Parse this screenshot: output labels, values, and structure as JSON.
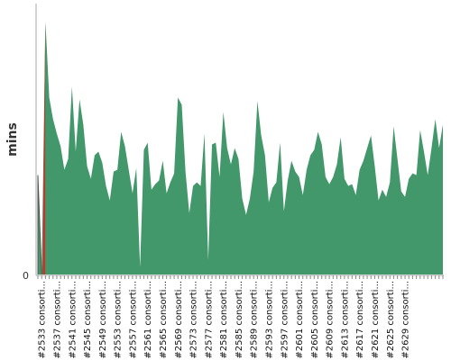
{
  "chart_data": {
    "type": "area",
    "ylabel": "mins",
    "ylim": [
      0,
      150
    ],
    "yticks": [
      0
    ],
    "grid": false,
    "colors": {
      "main": "#42986a",
      "highlight": "#c0392b",
      "axis": "#aaaaaa",
      "edge": "#555555"
    },
    "x_tick_labels": [
      "#2533 consorti...",
      "#2537 consorti...",
      "#2541 consorti...",
      "#2545 consorti...",
      "#2549 consorti...",
      "#2553 consorti...",
      "#2557 consorti...",
      "#2561 consorti...",
      "#2565 consorti...",
      "#2569 consorti...",
      "#2573 consorti...",
      "#2577 consorti...",
      "#2581 consorti...",
      "#2585 consorti...",
      "#2589 consorti...",
      "#2593 consorti...",
      "#2597 consorti...",
      "#2601 consorti...",
      "#2605 consorti...",
      "#2609 consorti...",
      "#2613 consorti...",
      "#2617 consorti...",
      "#2621 consorti...",
      "#2625 consorti...",
      "#2629 consorti..."
    ],
    "series": [
      {
        "x_start": 2532,
        "x_step": 1,
        "values": [
          55,
          0,
          140,
          98,
          86,
          78,
          71,
          58,
          64,
          104,
          68,
          97,
          83,
          60,
          53,
          66,
          68,
          62,
          49,
          41,
          57,
          58,
          79,
          71,
          58,
          45,
          59,
          4,
          69,
          73,
          47,
          50,
          52,
          63,
          45,
          51,
          56,
          98,
          94,
          57,
          34,
          49,
          51,
          49,
          78,
          8,
          72,
          73,
          54,
          90,
          70,
          61,
          70,
          64,
          42,
          33,
          42,
          57,
          96,
          77,
          66,
          40,
          48,
          51,
          73,
          35,
          52,
          63,
          57,
          54,
          44,
          58,
          66,
          69,
          79,
          72,
          54,
          50,
          54,
          61,
          76,
          53,
          49,
          50,
          44,
          58,
          63,
          70,
          77,
          60,
          41,
          47,
          43,
          51,
          82,
          64,
          46,
          43,
          53,
          56,
          55,
          80,
          68,
          55,
          70,
          86,
          70,
          83
        ]
      }
    ],
    "highlight_index": 1
  }
}
